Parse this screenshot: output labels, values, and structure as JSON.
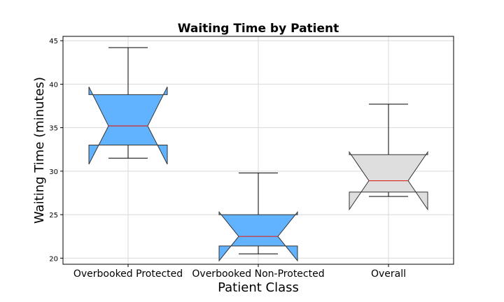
{
  "chart_data": {
    "type": "box",
    "title": "Waiting Time by Patient",
    "xlabel": "Patient Class",
    "ylabel": "Waiting Time (minutes)",
    "ylim": [
      19.3,
      45.5
    ],
    "yticks": [
      20,
      25,
      30,
      35,
      40,
      45
    ],
    "grid": true,
    "notched": true,
    "categories": [
      "Overbooked Protected",
      "Overbooked Non-Protected",
      "Overall"
    ],
    "boxes": [
      {
        "category": "Overbooked Protected",
        "whisker_low": 31.5,
        "q1": 33.0,
        "notch_low": 30.8,
        "median": 35.2,
        "notch_high": 39.7,
        "q3": 38.8,
        "whisker_high": 44.2,
        "color": "#62B3FF"
      },
      {
        "category": "Overbooked Non-Protected",
        "whisker_low": 20.5,
        "q1": 21.4,
        "notch_low": 19.7,
        "median": 22.5,
        "notch_high": 25.3,
        "q3": 25.0,
        "whisker_high": 29.8,
        "color": "#62B3FF"
      },
      {
        "category": "Overall",
        "whisker_low": 27.1,
        "q1": 27.6,
        "notch_low": 25.6,
        "median": 28.9,
        "notch_high": 32.2,
        "q3": 31.9,
        "whisker_high": 37.7,
        "color": "#DEDEDE"
      }
    ],
    "median_color": "#d62728"
  }
}
